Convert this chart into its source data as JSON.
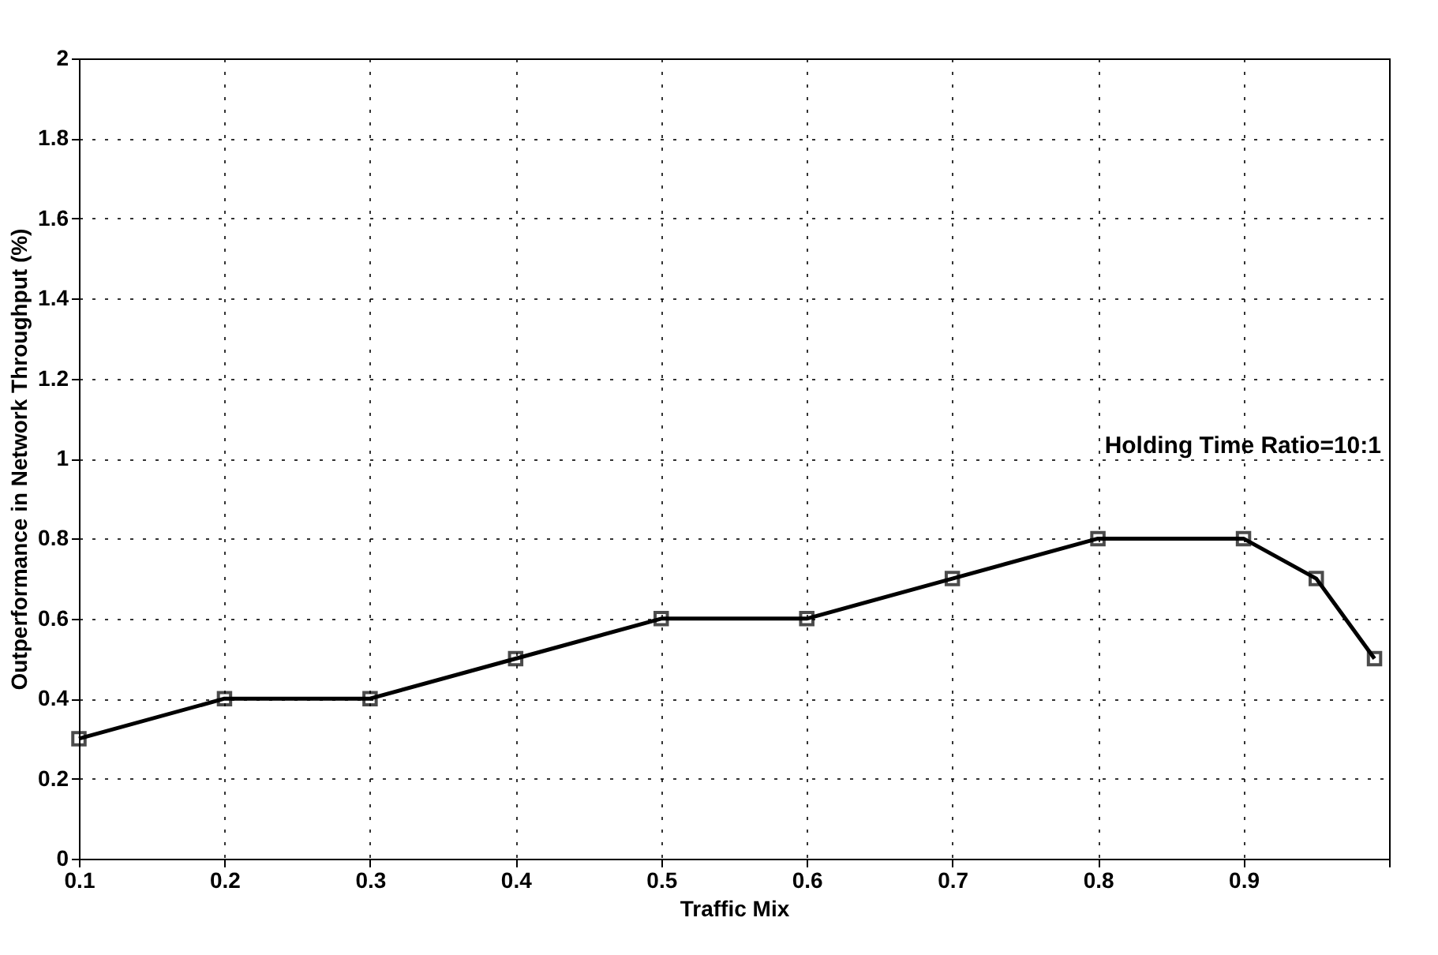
{
  "chart_data": {
    "type": "line",
    "xlabel": "Traffic Mix",
    "ylabel": "Outperformance in Network Throughput (%)",
    "x": [
      0.1,
      0.2,
      0.3,
      0.4,
      0.5,
      0.6,
      0.7,
      0.8,
      0.9,
      0.95,
      0.99
    ],
    "series": [
      {
        "color": "#000000",
        "values": [
          0.3,
          0.4,
          0.4,
          0.5,
          0.6,
          0.6,
          0.7,
          0.8,
          0.8,
          0.7,
          0.5
        ]
      }
    ],
    "annotations": [
      "Holding Time Ratio=10:1"
    ],
    "xlim": [
      0.1,
      1.0
    ],
    "xticks": [
      0.1,
      0.2,
      0.3,
      0.4,
      0.5,
      0.6,
      0.7,
      0.8,
      0.9,
      {
        "value": 1,
        "label": null
      }
    ],
    "ylim": [
      0,
      2
    ],
    "yticks": [
      0,
      0.2,
      0.4,
      0.6,
      0.8,
      1,
      1.2,
      1.4,
      1.6,
      1.8,
      2
    ],
    "grid": true,
    "marker": "square",
    "line_style": "solid"
  }
}
